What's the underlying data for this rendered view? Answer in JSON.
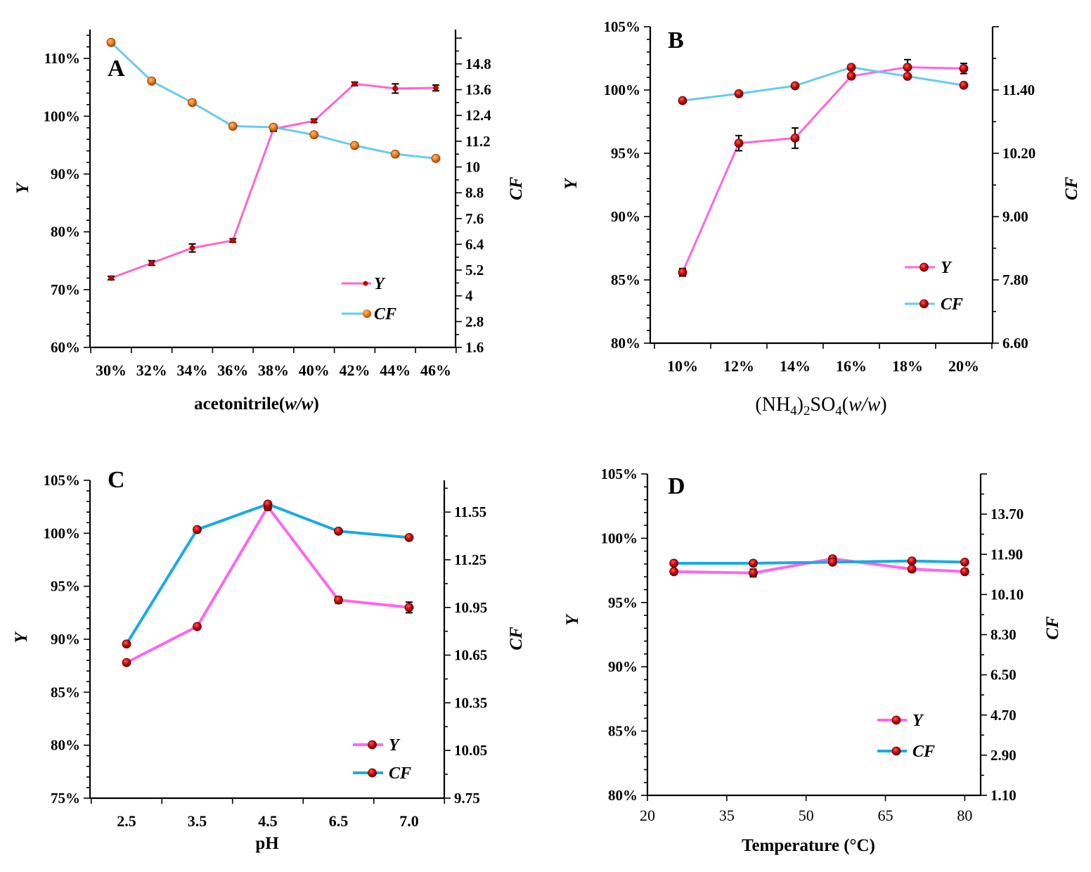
{
  "chart_data": [
    {
      "id": "A",
      "type": "line",
      "panel_label": "A",
      "xlabel_main": "acetonitrile",
      "xlabel_unit": "w/w",
      "ylabel_left": "Y",
      "ylabel_right": "CF",
      "categories": [
        "30%",
        "32%",
        "34%",
        "36%",
        "38%",
        "40%",
        "42%",
        "44%",
        "46%"
      ],
      "y_left_range": [
        60,
        115
      ],
      "y_left_ticks": [
        "60%",
        "70%",
        "80%",
        "90%",
        "100%",
        "110%"
      ],
      "y_left_tick_values": [
        60,
        70,
        80,
        90,
        100,
        110
      ],
      "y_right_range": [
        1.6,
        16.4
      ],
      "y_right_ticks": [
        "1.6",
        "2.8",
        "4",
        "5.2",
        "6.4",
        "7.6",
        "8.8",
        "10",
        "11.2",
        "12.4",
        "13.6",
        "14.8"
      ],
      "y_right_tick_values": [
        1.6,
        2.8,
        4,
        5.2,
        6.4,
        7.6,
        8.8,
        10,
        11.2,
        12.4,
        13.6,
        14.8
      ],
      "series": [
        {
          "name": "Y",
          "axis": "left",
          "color": "#ff66cc",
          "marker": "small",
          "values": [
            72.0,
            74.6,
            77.2,
            78.5,
            97.8,
            99.2,
            105.6,
            104.8,
            104.9
          ],
          "errors": [
            0.3,
            0.4,
            0.7,
            0.3,
            0.4,
            0.3,
            0.3,
            0.8,
            0.5
          ]
        },
        {
          "name": "CF",
          "axis": "right",
          "color": "#66ccee",
          "marker": "orange",
          "values": [
            15.8,
            14.0,
            13.0,
            11.9,
            11.85,
            11.5,
            11.0,
            10.6,
            10.4
          ],
          "errors": [
            0,
            0,
            0,
            0,
            0,
            0,
            0,
            0,
            0
          ]
        }
      ],
      "legend": [
        "Y",
        "CF"
      ]
    },
    {
      "id": "B",
      "type": "line",
      "panel_label": "B",
      "xlabel_main": "(NH",
      "xlabel_sub1": "4",
      "xlabel_mid": ")",
      "xlabel_sub2": "2",
      "xlabel_so": "SO",
      "xlabel_sub3": "4",
      "xlabel_unit": "w/w",
      "ylabel_left": "Y",
      "ylabel_right": "CF",
      "categories": [
        "10%",
        "12%",
        "14%",
        "16%",
        "18%",
        "20%"
      ],
      "y_left_range": [
        80,
        105
      ],
      "y_left_ticks": [
        "80%",
        "85%",
        "90%",
        "95%",
        "100%",
        "105%"
      ],
      "y_left_tick_values": [
        80,
        85,
        90,
        95,
        100,
        105
      ],
      "y_right_range": [
        6.6,
        12.6
      ],
      "y_right_ticks": [
        "6.60",
        "7.80",
        "9.00",
        "10.20",
        "11.40"
      ],
      "y_right_tick_values": [
        6.6,
        7.8,
        9.0,
        10.2,
        11.4
      ],
      "series": [
        {
          "name": "Y",
          "axis": "left",
          "color": "#ff66dd",
          "marker": "red",
          "values": [
            85.6,
            95.8,
            96.2,
            101.1,
            101.8,
            101.7
          ],
          "errors": [
            0.3,
            0.6,
            0.8,
            0.2,
            0.6,
            0.4
          ]
        },
        {
          "name": "CF",
          "axis": "right",
          "color": "#66ccee",
          "marker": "red",
          "values": [
            11.2,
            11.33,
            11.48,
            11.83,
            11.66,
            11.49
          ],
          "errors": [
            0,
            0,
            0,
            0,
            0,
            0
          ]
        }
      ],
      "legend": [
        "Y",
        "CF"
      ]
    },
    {
      "id": "C",
      "type": "line",
      "panel_label": "C",
      "xlabel_main": "pH",
      "ylabel_left": "Y",
      "ylabel_right": "CF",
      "categories": [
        "2.5",
        "3.5",
        "4.5",
        "6.5",
        "7.0"
      ],
      "y_left_range": [
        75,
        105
      ],
      "y_left_ticks": [
        "75%",
        "80%",
        "85%",
        "90%",
        "95%",
        "100%",
        "105%"
      ],
      "y_left_tick_values": [
        75,
        80,
        85,
        90,
        95,
        100,
        105
      ],
      "y_right_range": [
        9.75,
        11.75
      ],
      "y_right_ticks": [
        "9.75",
        "10.05",
        "10.35",
        "10.65",
        "10.95",
        "11.25",
        "11.55"
      ],
      "y_right_tick_values": [
        9.75,
        10.05,
        10.35,
        10.65,
        10.95,
        11.25,
        11.55
      ],
      "series": [
        {
          "name": "Y",
          "axis": "left",
          "color": "#ff66ee",
          "marker": "red",
          "values": [
            87.8,
            91.2,
            102.5,
            93.7,
            93.0
          ],
          "errors": [
            0.2,
            0.2,
            0.3,
            0.3,
            0.5
          ]
        },
        {
          "name": "CF",
          "axis": "right",
          "color": "#1aaae0",
          "marker": "red",
          "values": [
            10.72,
            11.44,
            11.6,
            11.43,
            11.39
          ],
          "errors": [
            0,
            0,
            0,
            0,
            0
          ]
        }
      ],
      "legend": [
        "Y",
        "CF"
      ]
    },
    {
      "id": "D",
      "type": "line",
      "panel_label": "D",
      "xlabel_main": "Temperature (°C)",
      "ylabel_left": "Y",
      "ylabel_right": "CF",
      "x_axis_range": [
        20,
        83
      ],
      "x_ticks": [
        "20",
        "35",
        "50",
        "65",
        "80"
      ],
      "x_tick_values": [
        20,
        35,
        50,
        65,
        80
      ],
      "x_values": [
        25,
        40,
        55,
        70,
        80
      ],
      "y_left_range": [
        80,
        105
      ],
      "y_left_ticks": [
        "80%",
        "85%",
        "90%",
        "95%",
        "100%",
        "105%"
      ],
      "y_left_tick_values": [
        80,
        85,
        90,
        95,
        100,
        105
      ],
      "y_right_range": [
        1.1,
        15.5
      ],
      "y_right_ticks": [
        "1.10",
        "2.90",
        "4.70",
        "6.50",
        "8.30",
        "10.10",
        "11.90",
        "13.70"
      ],
      "y_right_tick_values": [
        1.1,
        2.9,
        4.7,
        6.5,
        8.3,
        10.1,
        11.9,
        13.7
      ],
      "series": [
        {
          "name": "Y",
          "axis": "left",
          "color": "#ff66ee",
          "marker": "red",
          "values": [
            97.4,
            97.3,
            98.4,
            97.6,
            97.4
          ],
          "errors": [
            0.2,
            0.3,
            0.2,
            0.2,
            0.2
          ]
        },
        {
          "name": "CF",
          "axis": "right",
          "color": "#1aaae0",
          "marker": "red",
          "values": [
            11.5,
            11.5,
            11.55,
            11.6,
            11.55
          ],
          "errors": [
            0,
            0,
            0,
            0,
            0
          ]
        }
      ],
      "legend": [
        "Y",
        "CF"
      ]
    }
  ]
}
